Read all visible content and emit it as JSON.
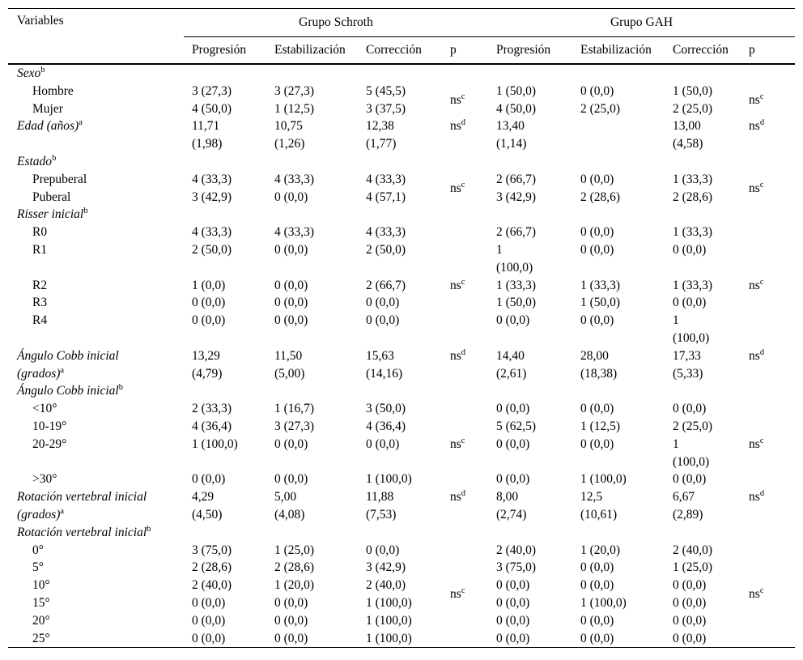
{
  "table": {
    "variables_header": "Variables",
    "groups": [
      {
        "title": "Grupo Schroth",
        "columns": [
          "Progresión",
          "Estabilización",
          "Corrección",
          "p"
        ]
      },
      {
        "title": "Grupo GAH",
        "columns": [
          "Progresión",
          "Estabilización",
          "Corrección",
          "p"
        ]
      }
    ],
    "p_not_significant_label": "ns",
    "rows": [
      {
        "kind": "section",
        "label": "Sexo",
        "sup": "b"
      },
      {
        "kind": "data",
        "indent": true,
        "label": "Hombre",
        "schroth": [
          "3 (27,3)",
          "3 (27,3)",
          "5 (45,5)"
        ],
        "p_schroth": {
          "text": "ns",
          "sup": "c",
          "rowspan": 2,
          "middle": true
        },
        "gah": [
          "1 (50,0)",
          "0 (0,0)",
          "1 (50,0)"
        ],
        "p_gah": {
          "text": "ns",
          "sup": "c",
          "rowspan": 2,
          "middle": true
        }
      },
      {
        "kind": "data",
        "indent": true,
        "label": "Mujer",
        "schroth": [
          "4 (50,0)",
          "1 (12,5)",
          "3 (37,5)"
        ],
        "gah": [
          "4 (50,0)",
          "2 (25,0)",
          "2 (25,0)"
        ]
      },
      {
        "kind": "data",
        "italic": true,
        "label": "Edad (años)",
        "sup": "a",
        "schroth": [
          "11,71\n(1,98)",
          "10,75\n(1,26)",
          "12,38\n(1,77)"
        ],
        "p_schroth": {
          "text": "ns",
          "sup": "d",
          "rowspan": 1,
          "middle": false
        },
        "gah": [
          "13,40\n(1,14)",
          "",
          "13,00\n(4,58)"
        ],
        "p_gah": {
          "text": "ns",
          "sup": "d",
          "rowspan": 1,
          "middle": false
        }
      },
      {
        "kind": "section",
        "label": "Estado",
        "sup": "b"
      },
      {
        "kind": "data",
        "indent": true,
        "label": "Prepuberal",
        "schroth": [
          "4 (33,3)",
          "4 (33,3)",
          "4 (33,3)"
        ],
        "p_schroth": {
          "text": "ns",
          "sup": "c",
          "rowspan": 2,
          "middle": true
        },
        "gah": [
          "2 (66,7)",
          "0 (0,0)",
          "1 (33,3)"
        ],
        "p_gah": {
          "text": "ns",
          "sup": "c",
          "rowspan": 2,
          "middle": true
        }
      },
      {
        "kind": "data",
        "indent": true,
        "label": "Puberal",
        "schroth": [
          "3 (42,9)",
          "0 (0,0)",
          "4 (57,1)"
        ],
        "gah": [
          "3 (42,9)",
          "2 (28,6)",
          "2 (28,6)"
        ]
      },
      {
        "kind": "section",
        "label": "Risser inicial",
        "sup": "b"
      },
      {
        "kind": "data",
        "indent": true,
        "label": "R0",
        "schroth": [
          "4 (33,3)",
          "4 (33,3)",
          "4 (33,3)"
        ],
        "p_schroth": {
          "text": "ns",
          "sup": "c",
          "rowspan": 5,
          "middle": true
        },
        "gah": [
          "2 (66,7)",
          "0 (0,0)",
          "1 (33,3)"
        ],
        "p_gah": {
          "text": "ns",
          "sup": "c",
          "rowspan": 5,
          "middle": true
        }
      },
      {
        "kind": "data",
        "indent": true,
        "label": "R1",
        "schroth": [
          "2 (50,0)",
          "0 (0,0)",
          "2 (50,0)"
        ],
        "gah": [
          "1\n(100,0)",
          "0 (0,0)",
          "0 (0,0)"
        ]
      },
      {
        "kind": "data",
        "indent": true,
        "label": "R2",
        "schroth": [
          "1 (0,0)",
          "0 (0,0)",
          "2 (66,7)"
        ],
        "gah": [
          "1 (33,3)",
          "1 (33,3)",
          "1 (33,3)"
        ]
      },
      {
        "kind": "data",
        "indent": true,
        "label": "R3",
        "schroth": [
          "0 (0,0)",
          "0 (0,0)",
          "0 (0,0)"
        ],
        "gah": [
          "1 (50,0)",
          "1 (50,0)",
          "0 (0,0)"
        ]
      },
      {
        "kind": "data",
        "indent": true,
        "label": "R4",
        "schroth": [
          "0 (0,0)",
          "0 (0,0)",
          "0 (0,0)"
        ],
        "gah": [
          "0 (0,0)",
          "0 (0,0)",
          "1\n(100,0)"
        ]
      },
      {
        "kind": "data",
        "italic": true,
        "label": "Ángulo Cobb inicial\n(grados)",
        "sup": "a",
        "schroth": [
          "13,29\n(4,79)",
          "11,50\n(5,00)",
          "15,63\n(14,16)"
        ],
        "p_schroth": {
          "text": "ns",
          "sup": "d",
          "rowspan": 1,
          "middle": false
        },
        "gah": [
          "14,40\n(2,61)",
          "28,00\n(18,38)",
          "17,33\n(5,33)"
        ],
        "p_gah": {
          "text": "ns",
          "sup": "d",
          "rowspan": 1,
          "middle": false
        }
      },
      {
        "kind": "section",
        "label": "Ángulo Cobb inicial",
        "sup": "b"
      },
      {
        "kind": "data",
        "indent": true,
        "label": "<10°",
        "schroth": [
          "2 (33,3)",
          "1 (16,7)",
          "3 (50,0)"
        ],
        "p_schroth": {
          "text": "ns",
          "sup": "c",
          "rowspan": 4,
          "middle": true
        },
        "gah": [
          "0 (0,0)",
          "0 (0,0)",
          "0 (0,0)"
        ],
        "p_gah": {
          "text": "ns",
          "sup": "c",
          "rowspan": 4,
          "middle": true
        }
      },
      {
        "kind": "data",
        "indent": true,
        "label": "10-19°",
        "schroth": [
          "4 (36,4)",
          "3 (27,3)",
          "4 (36,4)"
        ],
        "gah": [
          "5 (62,5)",
          "1 (12,5)",
          "2 (25,0)"
        ]
      },
      {
        "kind": "data",
        "indent": true,
        "label": "20-29°",
        "schroth": [
          "1 (100,0)",
          "0 (0,0)",
          "0 (0,0)"
        ],
        "gah": [
          "0 (0,0)",
          "0 (0,0)",
          "1\n(100,0)"
        ]
      },
      {
        "kind": "data",
        "indent": true,
        "label": ">30°",
        "schroth": [
          "0 (0,0)",
          "0 (0,0)",
          "1 (100,0)"
        ],
        "gah": [
          "0 (0,0)",
          "1 (100,0)",
          "0 (0,0)"
        ]
      },
      {
        "kind": "data",
        "italic": true,
        "label": "Rotación vertebral inicial\n(grados)",
        "sup": "a",
        "schroth": [
          "4,29\n(4,50)",
          "5,00\n(4,08)",
          "11,88\n(7,53)"
        ],
        "p_schroth": {
          "text": "ns",
          "sup": "d",
          "rowspan": 1,
          "middle": false
        },
        "gah": [
          "8,00\n(2,74)",
          "12,5\n(10,61)",
          "6,67\n(2,89)"
        ],
        "p_gah": {
          "text": "ns",
          "sup": "d",
          "rowspan": 1,
          "middle": false
        }
      },
      {
        "kind": "section",
        "label": "Rotación vertebral inicial",
        "sup": "b"
      },
      {
        "kind": "data",
        "indent": true,
        "label": "0°",
        "schroth": [
          "3 (75,0)",
          "1 (25,0)",
          "0 (0,0)"
        ],
        "p_schroth": {
          "text": "ns",
          "sup": "c",
          "rowspan": 6,
          "middle": true
        },
        "gah": [
          "2 (40,0)",
          "1 (20,0)",
          "2 (40,0)"
        ],
        "p_gah": {
          "text": "ns",
          "sup": "c",
          "rowspan": 6,
          "middle": true
        }
      },
      {
        "kind": "data",
        "indent": true,
        "label": "5°",
        "schroth": [
          "2 (28,6)",
          "2 (28,6)",
          "3 (42,9)"
        ],
        "gah": [
          "3 (75,0)",
          "0 (0,0)",
          "1 (25,0)"
        ]
      },
      {
        "kind": "data",
        "indent": true,
        "label": "10°",
        "schroth": [
          "2 (40,0)",
          "1 (20,0)",
          "2 (40,0)"
        ],
        "gah": [
          "0 (0,0)",
          "0 (0,0)",
          "0 (0,0)"
        ]
      },
      {
        "kind": "data",
        "indent": true,
        "label": "15°",
        "schroth": [
          "0 (0,0)",
          "0 (0,0)",
          "1 (100,0)"
        ],
        "gah": [
          "0 (0,0)",
          "1 (100,0)",
          "0 (0,0)"
        ]
      },
      {
        "kind": "data",
        "indent": true,
        "label": "20°",
        "schroth": [
          "0 (0,0)",
          "0 (0,0)",
          "1 (100,0)"
        ],
        "gah": [
          "0 (0,0)",
          "0 (0,0)",
          "0 (0,0)"
        ]
      },
      {
        "kind": "data",
        "indent": true,
        "label": "25°",
        "schroth": [
          "0 (0,0)",
          "0 (0,0)",
          "1 (100,0)"
        ],
        "gah": [
          "0 (0,0)",
          "0 (0,0)",
          "0 (0,0)"
        ]
      }
    ]
  }
}
